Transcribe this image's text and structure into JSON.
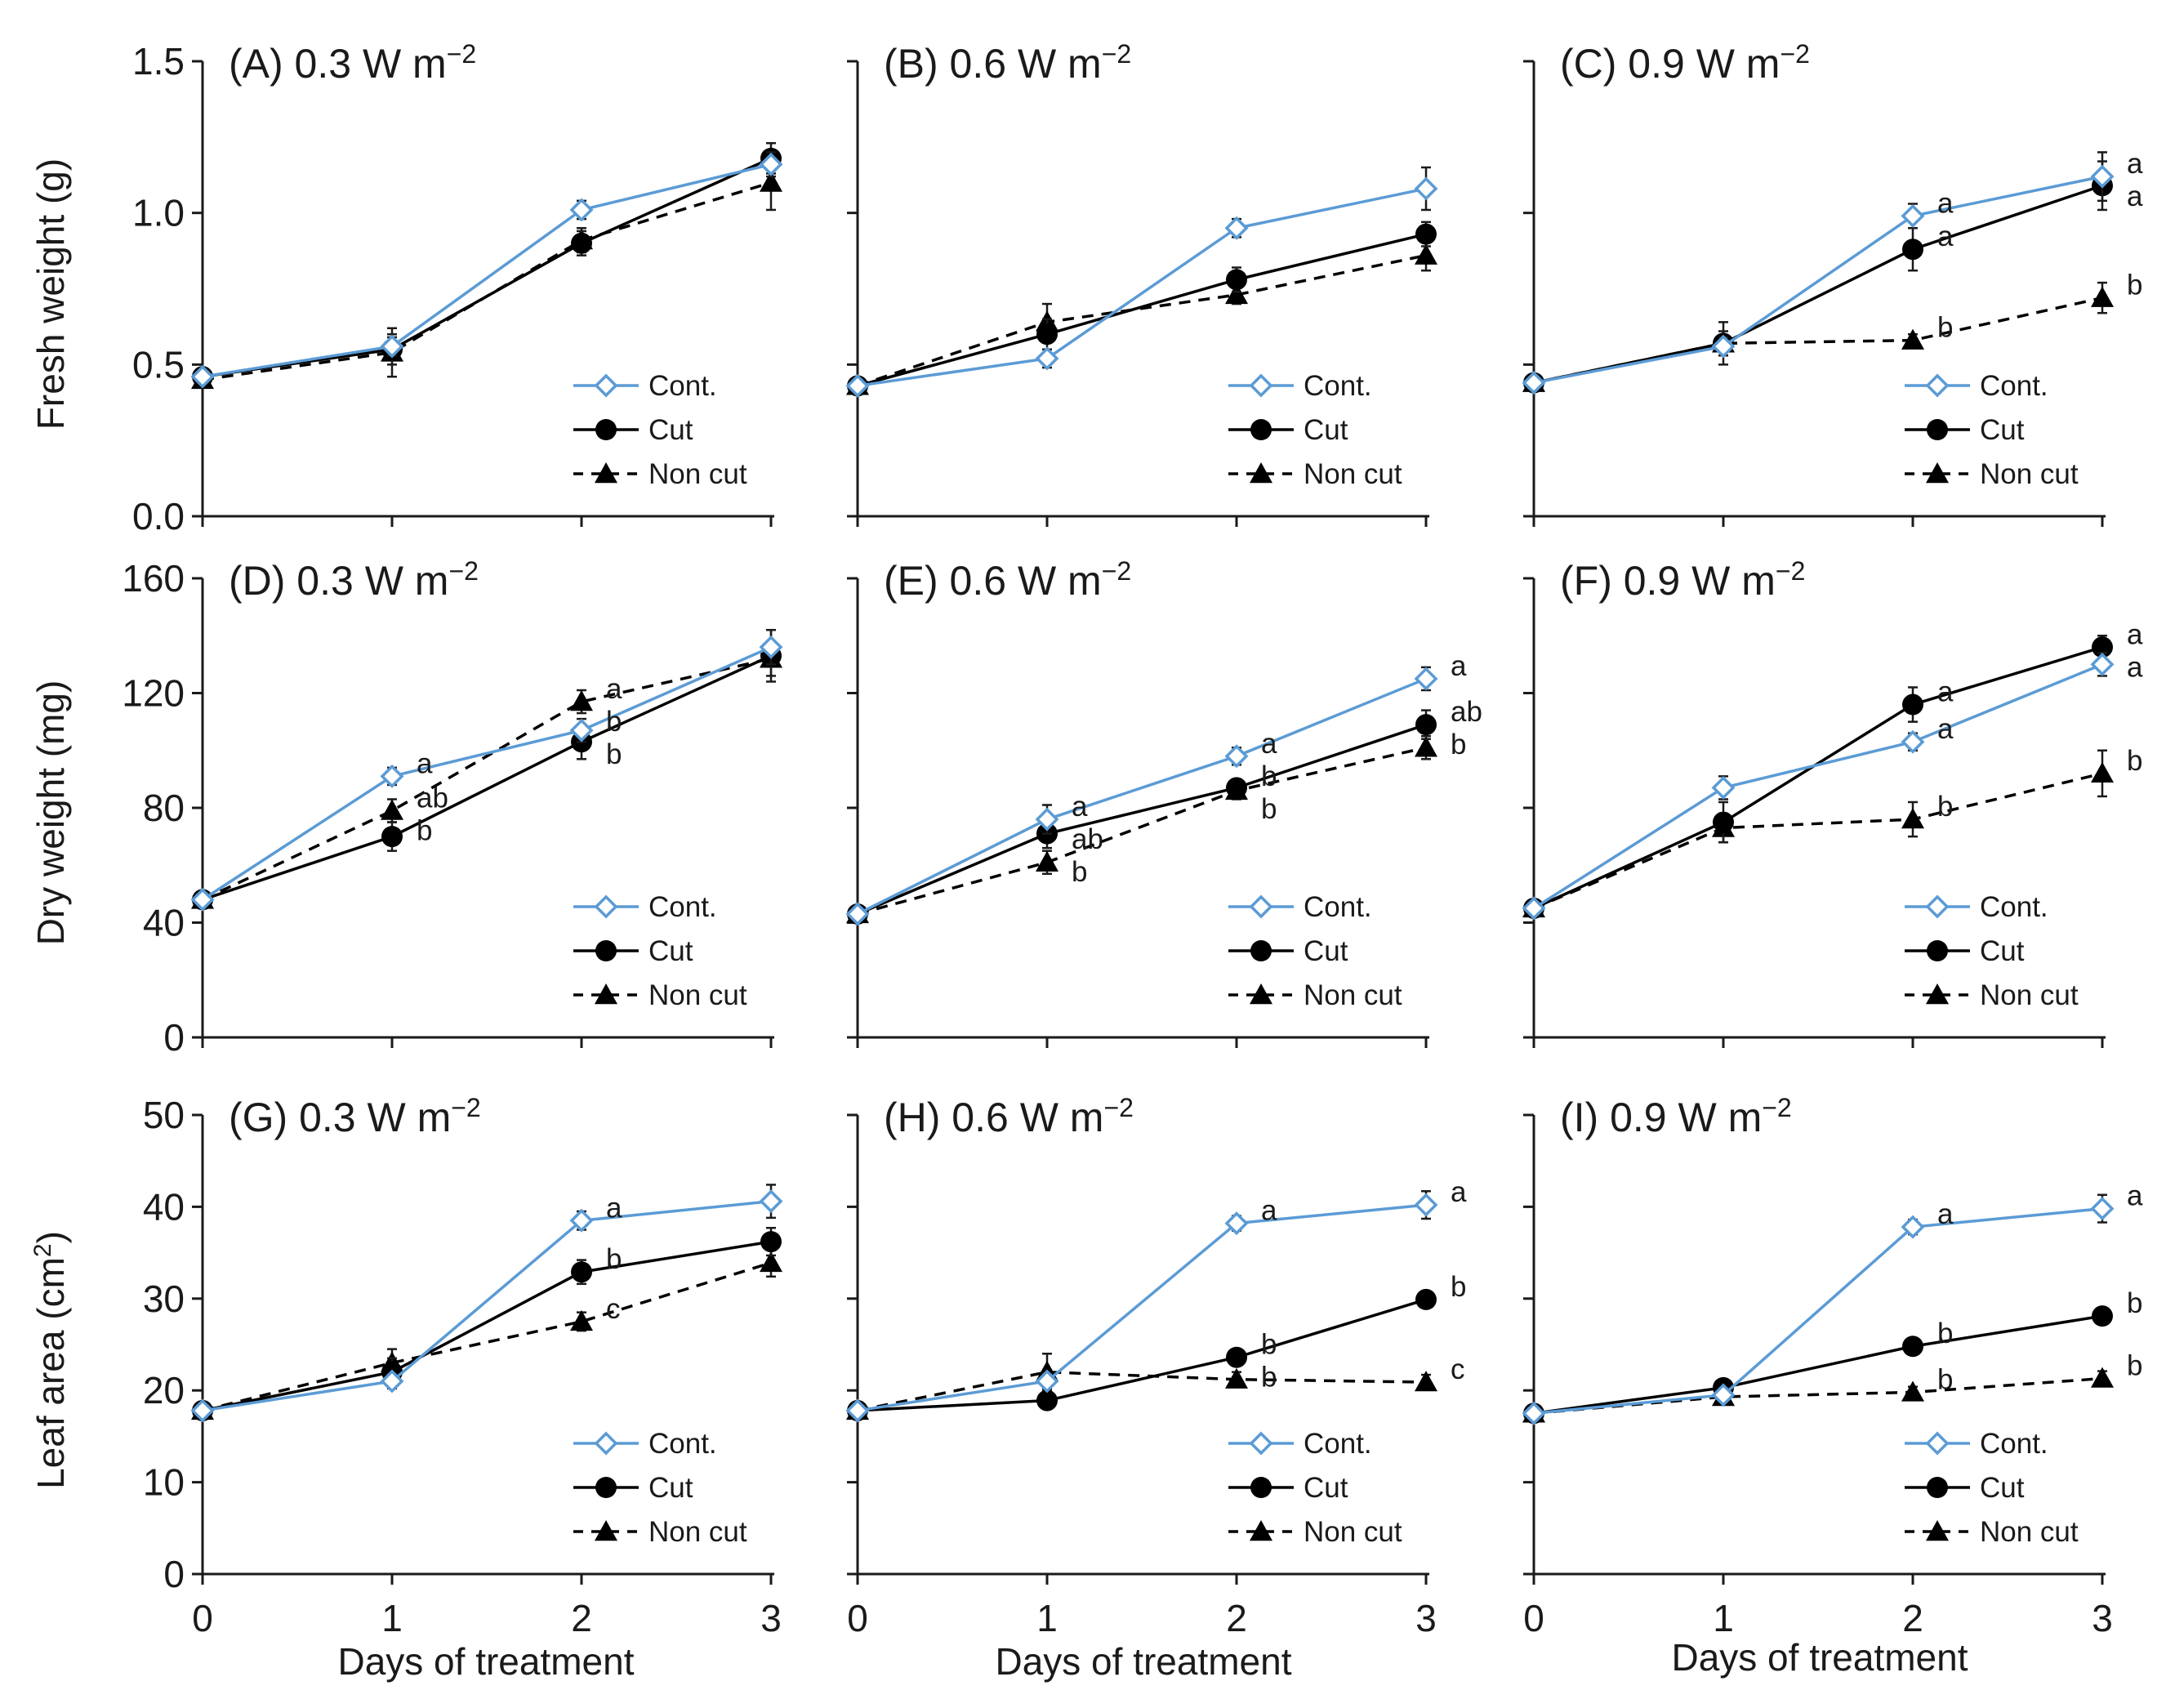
{
  "figure": {
    "x_axis_title": "Days of treatment",
    "row_axis_titles": [
      "Fresh weight (g)",
      "Dry weight (mg)",
      "Leaf area (cm"
    ],
    "leaf_area_superscript": "2",
    "leaf_area_suffix": ")"
  },
  "legend_labels": [
    "Cont.",
    "Cut",
    "Non cut"
  ],
  "colors": {
    "cont": "#5b9bd5",
    "cut": "#000000",
    "noncut": "#000000"
  },
  "chart_data": [
    {
      "type": "line",
      "panel": "A",
      "title_main": "(A) 0.3 W m",
      "title_exp": "−2",
      "ylabel": "Fresh weight (g)",
      "ylim": [
        0,
        1.5
      ],
      "yticks": [
        0,
        0.5,
        1.0,
        1.5
      ],
      "ytick_labels": [
        "0.0",
        "0.5",
        "1.0",
        "1.5"
      ],
      "x": [
        0,
        1,
        2,
        3
      ],
      "xtick_labels": [],
      "series": [
        {
          "name": "Cont.",
          "values": [
            0.46,
            0.56,
            1.01,
            1.16
          ],
          "err": [
            0.02,
            0.03,
            0.03,
            0.04
          ],
          "letters": [
            "",
            "",
            "",
            ""
          ]
        },
        {
          "name": "Cut",
          "values": [
            0.46,
            0.55,
            0.9,
            1.18
          ],
          "err": [
            0.02,
            0.05,
            0.04,
            0.05
          ],
          "letters": [
            "",
            "",
            "",
            ""
          ]
        },
        {
          "name": "Non cut",
          "values": [
            0.45,
            0.54,
            0.91,
            1.1
          ],
          "err": [
            0.02,
            0.08,
            0.04,
            0.09
          ],
          "letters": [
            "",
            "",
            "",
            ""
          ]
        }
      ]
    },
    {
      "type": "line",
      "panel": "B",
      "title_main": "(B) 0.6 W m",
      "title_exp": "−2",
      "ylabel": "",
      "ylim": [
        0,
        1.5
      ],
      "yticks": [
        0,
        0.5,
        1.0,
        1.5
      ],
      "ytick_labels": [],
      "x": [
        0,
        1,
        2,
        3
      ],
      "xtick_labels": [],
      "series": [
        {
          "name": "Cont.",
          "values": [
            0.43,
            0.52,
            0.95,
            1.08
          ],
          "err": [
            0.02,
            0.03,
            0.03,
            0.07
          ],
          "letters": [
            "",
            "",
            "",
            ""
          ]
        },
        {
          "name": "Cut",
          "values": [
            0.43,
            0.6,
            0.78,
            0.93
          ],
          "err": [
            0.02,
            0.05,
            0.04,
            0.04
          ],
          "letters": [
            "",
            "",
            "",
            ""
          ]
        },
        {
          "name": "Non cut",
          "values": [
            0.43,
            0.64,
            0.73,
            0.86
          ],
          "err": [
            0.02,
            0.06,
            0.03,
            0.05
          ],
          "letters": [
            "",
            "",
            "",
            ""
          ]
        }
      ]
    },
    {
      "type": "line",
      "panel": "C",
      "title_main": "(C) 0.9 W m",
      "title_exp": "−2",
      "ylabel": "",
      "ylim": [
        0,
        1.5
      ],
      "yticks": [
        0,
        0.5,
        1.0,
        1.5
      ],
      "ytick_labels": [],
      "x": [
        0,
        1,
        2,
        3
      ],
      "xtick_labels": [],
      "series": [
        {
          "name": "Cont.",
          "values": [
            0.44,
            0.56,
            0.99,
            1.12
          ],
          "err": [
            0.02,
            0.03,
            0.04,
            0.08
          ],
          "letters": [
            "",
            "",
            "a",
            "a"
          ]
        },
        {
          "name": "Cut",
          "values": [
            0.44,
            0.57,
            0.88,
            1.09
          ],
          "err": [
            0.02,
            0.07,
            0.07,
            0.08
          ],
          "letters": [
            "",
            "",
            "a",
            "a"
          ]
        },
        {
          "name": "Non cut",
          "values": [
            0.44,
            0.57,
            0.58,
            0.72
          ],
          "err": [
            0.02,
            0.04,
            0.02,
            0.05
          ],
          "letters": [
            "",
            "",
            "b",
            "b"
          ]
        }
      ]
    },
    {
      "type": "line",
      "panel": "D",
      "title_main": "(D) 0.3 W m",
      "title_exp": "−2",
      "ylabel": "Dry weight (mg)",
      "ylim": [
        0,
        160
      ],
      "yticks": [
        0,
        40,
        80,
        120,
        160
      ],
      "ytick_labels": [
        "0",
        "40",
        "80",
        "120",
        "160"
      ],
      "x": [
        0,
        1,
        2,
        3
      ],
      "xtick_labels": [],
      "series": [
        {
          "name": "Cont.",
          "values": [
            48,
            91,
            107,
            136
          ],
          "err": [
            2,
            3,
            4,
            6
          ],
          "letters": [
            "",
            "a",
            "b",
            ""
          ]
        },
        {
          "name": "Cut",
          "values": [
            48,
            70,
            103,
            133
          ],
          "err": [
            2,
            5,
            6,
            9
          ],
          "letters": [
            "",
            "b",
            "b",
            ""
          ]
        },
        {
          "name": "Non cut",
          "values": [
            48,
            79,
            117,
            132
          ],
          "err": [
            2,
            4,
            4,
            6
          ],
          "letters": [
            "",
            "ab",
            "a",
            ""
          ]
        }
      ]
    },
    {
      "type": "line",
      "panel": "E",
      "title_main": "(E) 0.6 W m",
      "title_exp": "−2",
      "ylabel": "",
      "ylim": [
        0,
        160
      ],
      "yticks": [
        0,
        40,
        80,
        120,
        160
      ],
      "ytick_labels": [],
      "x": [
        0,
        1,
        2,
        3
      ],
      "xtick_labels": [],
      "series": [
        {
          "name": "Cont.",
          "values": [
            43,
            76,
            98,
            125
          ],
          "err": [
            2,
            5,
            3,
            4
          ],
          "letters": [
            "",
            "a",
            "a",
            "a"
          ]
        },
        {
          "name": "Cut",
          "values": [
            43,
            71,
            87,
            109
          ],
          "err": [
            2,
            5,
            3,
            5
          ],
          "letters": [
            "",
            "ab",
            "b",
            "ab"
          ]
        },
        {
          "name": "Non cut",
          "values": [
            43,
            61,
            86,
            101
          ],
          "err": [
            2,
            4,
            3,
            4
          ],
          "letters": [
            "",
            "b",
            "b",
            "b"
          ]
        }
      ]
    },
    {
      "type": "line",
      "panel": "F",
      "title_main": "(F) 0.9 W m",
      "title_exp": "−2",
      "ylabel": "",
      "ylim": [
        0,
        160
      ],
      "yticks": [
        0,
        40,
        80,
        120,
        160
      ],
      "ytick_labels": [],
      "x": [
        0,
        1,
        2,
        3
      ],
      "xtick_labels": [],
      "series": [
        {
          "name": "Cont.",
          "values": [
            45,
            87,
            103,
            130
          ],
          "err": [
            2,
            4,
            3,
            4
          ],
          "letters": [
            "",
            "",
            "a",
            "a"
          ]
        },
        {
          "name": "Cut",
          "values": [
            45,
            75,
            116,
            136
          ],
          "err": [
            2,
            7,
            6,
            4
          ],
          "letters": [
            "",
            "",
            "a",
            "a"
          ]
        },
        {
          "name": "Non cut",
          "values": [
            45,
            73,
            76,
            92
          ],
          "err": [
            2,
            5,
            6,
            8
          ],
          "letters": [
            "",
            "",
            "b",
            "b"
          ]
        }
      ]
    },
    {
      "type": "line",
      "panel": "G",
      "title_main": "(G) 0.3 W m",
      "title_exp": "−2",
      "ylabel": "Leaf area (cm2)",
      "ylim": [
        0,
        50
      ],
      "yticks": [
        0,
        10,
        20,
        30,
        40,
        50
      ],
      "ytick_labels": [
        "0",
        "10",
        "20",
        "30",
        "40",
        "50"
      ],
      "x": [
        0,
        1,
        2,
        3
      ],
      "xtick_labels": [
        "0",
        "1",
        "2",
        "3"
      ],
      "series": [
        {
          "name": "Cont.",
          "values": [
            17.8,
            21.0,
            38.5,
            40.6
          ],
          "err": [
            0.6,
            0.8,
            1.0,
            1.8
          ],
          "letters": [
            "",
            "",
            "a",
            ""
          ]
        },
        {
          "name": "Cut",
          "values": [
            17.8,
            22.0,
            32.9,
            36.2
          ],
          "err": [
            0.6,
            1.5,
            1.3,
            1.5
          ],
          "letters": [
            "",
            "",
            "b",
            ""
          ]
        },
        {
          "name": "Non cut",
          "values": [
            17.8,
            23.0,
            27.5,
            33.9
          ],
          "err": [
            0.6,
            1.5,
            1.0,
            1.5
          ],
          "letters": [
            "",
            "",
            "c",
            ""
          ]
        }
      ]
    },
    {
      "type": "line",
      "panel": "H",
      "title_main": "(H) 0.6 W m",
      "title_exp": "−2",
      "ylabel": "",
      "ylim": [
        0,
        50
      ],
      "yticks": [
        0,
        10,
        20,
        30,
        40,
        50
      ],
      "ytick_labels": [],
      "x": [
        0,
        1,
        2,
        3
      ],
      "xtick_labels": [
        "0",
        "1",
        "2",
        "3"
      ],
      "series": [
        {
          "name": "Cont.",
          "values": [
            17.8,
            21.0,
            38.2,
            40.2
          ],
          "err": [
            0.6,
            0.8,
            0.8,
            1.5
          ],
          "letters": [
            "",
            "",
            "a",
            "a"
          ]
        },
        {
          "name": "Cut",
          "values": [
            17.8,
            18.9,
            23.6,
            29.9
          ],
          "err": [
            0.6,
            0.6,
            0.8,
            0.8
          ],
          "letters": [
            "",
            "",
            "b",
            "b"
          ]
        },
        {
          "name": "Non cut",
          "values": [
            17.8,
            22.0,
            21.2,
            20.9
          ],
          "err": [
            0.6,
            2.0,
            0.8,
            0.8
          ],
          "letters": [
            "",
            "",
            "b",
            "c"
          ]
        }
      ]
    },
    {
      "type": "line",
      "panel": "I",
      "title_main": "(I) 0.9 W m",
      "title_exp": "−2",
      "ylabel": "",
      "ylim": [
        0,
        50
      ],
      "yticks": [
        0,
        10,
        20,
        30,
        40,
        50
      ],
      "ytick_labels": [],
      "x": [
        0,
        1,
        2,
        3
      ],
      "xtick_labels": [
        "0",
        "1",
        "2",
        "3"
      ],
      "series": [
        {
          "name": "Cont.",
          "values": [
            17.5,
            19.5,
            37.8,
            39.8
          ],
          "err": [
            0.6,
            0.6,
            0.8,
            1.5
          ],
          "letters": [
            "",
            "",
            "a",
            "a"
          ]
        },
        {
          "name": "Cut",
          "values": [
            17.5,
            20.3,
            24.8,
            28.1
          ],
          "err": [
            0.6,
            0.6,
            0.8,
            0.8
          ],
          "letters": [
            "",
            "",
            "b",
            "b"
          ]
        },
        {
          "name": "Non cut",
          "values": [
            17.5,
            19.3,
            19.8,
            21.3
          ],
          "err": [
            0.6,
            0.6,
            0.6,
            0.8
          ],
          "letters": [
            "",
            "",
            "b",
            "b"
          ]
        }
      ]
    }
  ]
}
